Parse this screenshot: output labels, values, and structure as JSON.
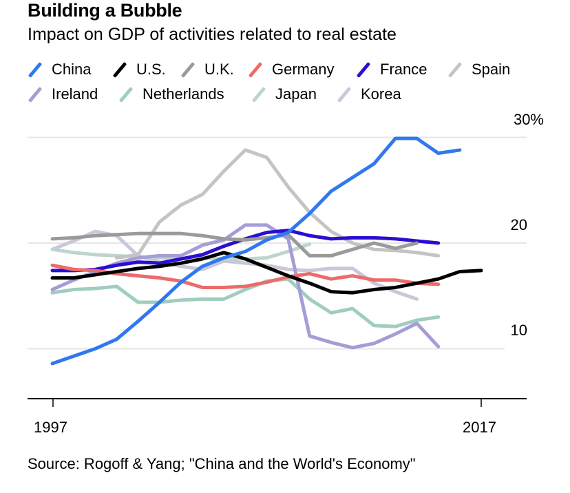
{
  "chart_data": {
    "type": "line",
    "title": "Building a Bubble",
    "subtitle": "Impact on GDP of activities related to real estate",
    "source": "Source: Rogoff & Yang; \"China and the World's Economy\"",
    "xlabel": "",
    "ylabel": "",
    "xlim": [
      1997,
      2017
    ],
    "ylim": [
      5,
      30
    ],
    "x_ticks": [
      "1997",
      "2017"
    ],
    "y_ticks": [
      {
        "value": 30,
        "label": "30%"
      },
      {
        "value": 20,
        "label": "20"
      },
      {
        "value": 10,
        "label": "10"
      }
    ],
    "grid": true,
    "legend": "top",
    "series": [
      {
        "name": "China",
        "color": "#3178f0",
        "start": 1997,
        "values": [
          8.6,
          9.3,
          10.0,
          10.9,
          12.6,
          14.4,
          16.3,
          17.8,
          18.6,
          19.2,
          20.3,
          21.0,
          22.8,
          24.9,
          26.2,
          27.5,
          29.9,
          29.9,
          28.5,
          28.8
        ]
      },
      {
        "name": "U.S.",
        "color": "#000000",
        "start": 1997,
        "values": [
          16.7,
          16.7,
          17.0,
          17.3,
          17.6,
          17.8,
          18.1,
          18.5,
          19.1,
          18.5,
          17.7,
          16.9,
          16.2,
          15.4,
          15.3,
          15.6,
          15.8,
          16.2,
          16.6,
          17.3,
          17.4
        ]
      },
      {
        "name": "U.K.",
        "color": "#9a9a9a",
        "start": 1997,
        "values": [
          20.4,
          20.5,
          20.7,
          20.8,
          20.9,
          20.9,
          20.9,
          20.7,
          20.4,
          20.3,
          20.5,
          20.8,
          18.8,
          18.8,
          19.4,
          20.0,
          19.5,
          20.0
        ]
      },
      {
        "name": "Germany",
        "color": "#ec6b6b",
        "start": 1997,
        "values": [
          17.9,
          17.5,
          17.4,
          17.1,
          16.9,
          16.7,
          16.4,
          15.8,
          15.8,
          15.9,
          16.3,
          16.8,
          17.1,
          16.6,
          16.9,
          16.5,
          16.5,
          16.2,
          16.1
        ]
      },
      {
        "name": "France",
        "color": "#2a0fd0",
        "start": 1997,
        "values": [
          17.4,
          17.4,
          17.5,
          17.9,
          18.2,
          18.1,
          18.5,
          18.9,
          19.7,
          20.4,
          21.0,
          21.2,
          20.7,
          20.4,
          20.5,
          20.5,
          20.4,
          20.2,
          20.0
        ]
      },
      {
        "name": "Spain",
        "color": "#c4c4c4",
        "start": 2000,
        "values": [
          18.6,
          18.9,
          22.0,
          23.6,
          24.6,
          26.8,
          28.8,
          28.1,
          25.3,
          22.9,
          21.1,
          20.0,
          19.4,
          19.3,
          19.1,
          18.8
        ]
      },
      {
        "name": "Ireland",
        "color": "#a59dd6",
        "start": 1997,
        "values": [
          15.6,
          16.5,
          17.3,
          18.1,
          18.6,
          18.8,
          18.8,
          19.8,
          20.3,
          21.7,
          21.7,
          20.4,
          11.2,
          10.6,
          10.1,
          10.5,
          11.4,
          12.4,
          10.2
        ]
      },
      {
        "name": "Netherlands",
        "color": "#9fcdbf",
        "start": 1997,
        "values": [
          15.3,
          15.6,
          15.7,
          15.9,
          14.4,
          14.4,
          14.6,
          14.7,
          14.7,
          15.6,
          16.4,
          16.6,
          14.7,
          13.4,
          13.8,
          12.2,
          12.1,
          12.7,
          13.0
        ]
      },
      {
        "name": "Japan",
        "color": "#bcd6cc",
        "start": 1997,
        "values": [
          19.4,
          19.1,
          18.9,
          18.8,
          18.7,
          18.6,
          18.5,
          18.6,
          18.5,
          18.5,
          18.6,
          19.2,
          19.9
        ]
      },
      {
        "name": "Korea",
        "color": "#c9c7d9",
        "start": 1997,
        "values": [
          19.4,
          20.2,
          21.1,
          20.7,
          18.8,
          18.2,
          17.8,
          17.5,
          18.3,
          18.1,
          17.9,
          17.5,
          17.4,
          17.6,
          17.6,
          16.2,
          15.4,
          14.7
        ]
      }
    ]
  }
}
